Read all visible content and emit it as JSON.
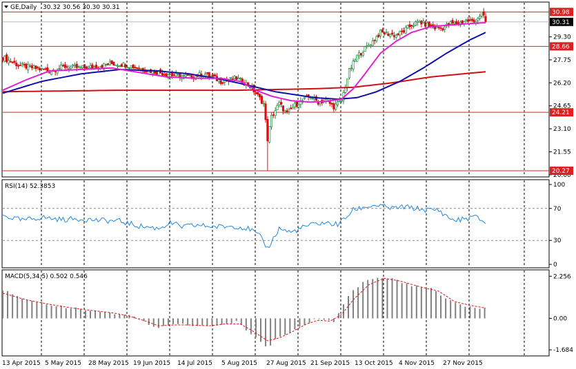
{
  "chart_data": [
    {
      "type": "candlestick",
      "header": {
        "symbol_label": "GE,Daily",
        "ohlc": "30.32 30.56 30.30 30.31"
      },
      "y_ticks": [
        "29.30",
        "27.75",
        "26.20",
        "24.65",
        "23.10",
        "21.55",
        "20.00"
      ],
      "price_levels": [
        {
          "label": "30.98",
          "value": 30.98,
          "style": "red-line"
        },
        {
          "label": "30.31",
          "value": 30.31,
          "style": "current"
        },
        {
          "label": "28.66",
          "value": 28.66,
          "style": "red-line"
        },
        {
          "label": "24.21",
          "value": 24.21,
          "style": "red-line"
        },
        {
          "label": "20.27",
          "value": 20.27,
          "style": "red-line"
        }
      ],
      "ylim": [
        19.9,
        31.6
      ],
      "x_labels": [
        "13 Apr 2015",
        "5 May 2015",
        "28 May 2015",
        "19 Jun 2015",
        "14 Jul 2015",
        "5 Aug 2015",
        "27 Aug 2015",
        "21 Sep 2015",
        "13 Oct 2015",
        "4 Nov 2015",
        "27 Nov 2015"
      ],
      "close_path": [
        [
          0,
          27.9
        ],
        [
          8,
          27.4
        ],
        [
          16,
          27.2
        ],
        [
          24,
          27.0
        ],
        [
          32,
          27.3
        ],
        [
          40,
          27.2
        ],
        [
          48,
          27.3
        ],
        [
          56,
          27.5
        ],
        [
          64,
          27.4
        ],
        [
          72,
          27.1
        ],
        [
          80,
          26.9
        ],
        [
          88,
          26.7
        ],
        [
          96,
          26.6
        ],
        [
          104,
          26.8
        ],
        [
          112,
          26.3
        ],
        [
          120,
          26.5
        ],
        [
          127,
          26.0
        ],
        [
          134,
          24.8
        ],
        [
          136,
          22.4
        ],
        [
          138,
          23.9
        ],
        [
          142,
          24.8
        ],
        [
          146,
          24.1
        ],
        [
          150,
          24.7
        ],
        [
          154,
          25.0
        ],
        [
          158,
          25.3
        ],
        [
          162,
          24.9
        ],
        [
          166,
          25.0
        ],
        [
          170,
          24.6
        ],
        [
          174,
          25.0
        ],
        [
          178,
          27.0
        ],
        [
          182,
          28.0
        ],
        [
          186,
          28.5
        ],
        [
          190,
          29.0
        ],
        [
          194,
          29.6
        ],
        [
          198,
          29.5
        ],
        [
          202,
          29.4
        ],
        [
          206,
          29.7
        ],
        [
          210,
          30.1
        ],
        [
          214,
          30.3
        ],
        [
          218,
          30.1
        ],
        [
          222,
          29.9
        ],
        [
          226,
          29.9
        ],
        [
          230,
          30.2
        ],
        [
          234,
          30.2
        ],
        [
          238,
          30.4
        ],
        [
          242,
          30.3
        ],
        [
          246,
          30.9
        ],
        [
          248,
          30.31
        ]
      ],
      "ma_fast": [
        [
          0,
          25.7
        ],
        [
          12,
          26.4
        ],
        [
          24,
          27.0
        ],
        [
          40,
          27.1
        ],
        [
          56,
          27.2
        ],
        [
          70,
          26.9
        ],
        [
          84,
          26.6
        ],
        [
          100,
          26.5
        ],
        [
          112,
          26.5
        ],
        [
          122,
          26.3
        ],
        [
          130,
          25.7
        ],
        [
          138,
          25.3
        ],
        [
          148,
          25.0
        ],
        [
          158,
          24.9
        ],
        [
          166,
          24.95
        ],
        [
          174,
          25.1
        ],
        [
          180,
          25.8
        ],
        [
          186,
          26.8
        ],
        [
          194,
          28.2
        ],
        [
          202,
          29.0
        ],
        [
          210,
          29.6
        ],
        [
          220,
          30.0
        ],
        [
          230,
          30.1
        ],
        [
          240,
          30.2
        ],
        [
          248,
          30.25
        ]
      ],
      "ma_mid": [
        [
          0,
          25.5
        ],
        [
          20,
          26.3
        ],
        [
          40,
          26.8
        ],
        [
          60,
          27.1
        ],
        [
          80,
          27.0
        ],
        [
          96,
          26.8
        ],
        [
          110,
          26.5
        ],
        [
          124,
          26.1
        ],
        [
          140,
          25.6
        ],
        [
          160,
          25.2
        ],
        [
          172,
          25.1
        ],
        [
          182,
          25.2
        ],
        [
          192,
          25.6
        ],
        [
          204,
          26.3
        ],
        [
          216,
          27.2
        ],
        [
          228,
          28.2
        ],
        [
          240,
          29.1
        ],
        [
          248,
          29.6
        ]
      ],
      "ma_slow": [
        [
          0,
          25.6
        ],
        [
          60,
          25.7
        ],
        [
          120,
          25.7
        ],
        [
          160,
          25.8
        ],
        [
          180,
          25.9
        ],
        [
          200,
          26.2
        ],
        [
          220,
          26.6
        ],
        [
          248,
          26.95
        ]
      ]
    },
    {
      "type": "line",
      "label": "RSI(14) 52.3853",
      "y_ticks": [
        "100",
        "70",
        "30",
        "0"
      ],
      "levels": [
        70,
        30
      ],
      "ylim": [
        0,
        100
      ],
      "values": [
        [
          0,
          61
        ],
        [
          10,
          55
        ],
        [
          20,
          59
        ],
        [
          30,
          56
        ],
        [
          40,
          57
        ],
        [
          50,
          55
        ],
        [
          60,
          54
        ],
        [
          70,
          48
        ],
        [
          80,
          45
        ],
        [
          86,
          52
        ],
        [
          92,
          47
        ],
        [
          100,
          49
        ],
        [
          110,
          47
        ],
        [
          120,
          48
        ],
        [
          127,
          44
        ],
        [
          132,
          35
        ],
        [
          136,
          20
        ],
        [
          142,
          45
        ],
        [
          148,
          40
        ],
        [
          156,
          48
        ],
        [
          164,
          52
        ],
        [
          172,
          50
        ],
        [
          176,
          58
        ],
        [
          180,
          68
        ],
        [
          186,
          72
        ],
        [
          192,
          74
        ],
        [
          196,
          72
        ],
        [
          200,
          70
        ],
        [
          206,
          72
        ],
        [
          212,
          70
        ],
        [
          218,
          68
        ],
        [
          224,
          68
        ],
        [
          228,
          60
        ],
        [
          232,
          55
        ],
        [
          238,
          57
        ],
        [
          242,
          60
        ],
        [
          246,
          55
        ],
        [
          248,
          52.4
        ]
      ]
    },
    {
      "type": "bar",
      "label": "MACD(5,34,5) 0.502 0.546",
      "y_ticks": [
        "2.256",
        "0.00",
        "-1.684"
      ],
      "ylim": [
        -1.9,
        2.45
      ],
      "values": [
        [
          0,
          1.55
        ],
        [
          12,
          0.95
        ],
        [
          24,
          0.75
        ],
        [
          36,
          0.55
        ],
        [
          46,
          0.42
        ],
        [
          56,
          0.3
        ],
        [
          64,
          0.15
        ],
        [
          72,
          -0.05
        ],
        [
          78,
          -0.55
        ],
        [
          86,
          -0.3
        ],
        [
          94,
          -0.35
        ],
        [
          104,
          -0.4
        ],
        [
          112,
          -0.35
        ],
        [
          120,
          -0.15
        ],
        [
          126,
          -0.7
        ],
        [
          134,
          -1.35
        ],
        [
          136,
          -1.6
        ],
        [
          140,
          -1.1
        ],
        [
          146,
          -0.8
        ],
        [
          152,
          -0.5
        ],
        [
          160,
          -0.05
        ],
        [
          166,
          -0.1
        ],
        [
          170,
          -0.2
        ],
        [
          174,
          0.5
        ],
        [
          178,
          1.3
        ],
        [
          186,
          2.05
        ],
        [
          194,
          2.2
        ],
        [
          200,
          2.1
        ],
        [
          210,
          1.75
        ],
        [
          220,
          1.6
        ],
        [
          228,
          1.0
        ],
        [
          236,
          0.7
        ],
        [
          244,
          0.6
        ],
        [
          248,
          0.5
        ]
      ],
      "signal": [
        [
          0,
          1.35
        ],
        [
          12,
          1.0
        ],
        [
          24,
          0.75
        ],
        [
          36,
          0.55
        ],
        [
          46,
          0.42
        ],
        [
          56,
          0.3
        ],
        [
          64,
          0.15
        ],
        [
          72,
          -0.1
        ],
        [
          80,
          -0.4
        ],
        [
          88,
          -0.35
        ],
        [
          96,
          -0.35
        ],
        [
          106,
          -0.4
        ],
        [
          114,
          -0.3
        ],
        [
          122,
          -0.3
        ],
        [
          128,
          -0.65
        ],
        [
          136,
          -1.2
        ],
        [
          142,
          -1.05
        ],
        [
          148,
          -0.75
        ],
        [
          156,
          -0.3
        ],
        [
          162,
          -0.1
        ],
        [
          168,
          -0.15
        ],
        [
          174,
          0.2
        ],
        [
          180,
          1.0
        ],
        [
          188,
          1.8
        ],
        [
          196,
          2.15
        ],
        [
          204,
          2.0
        ],
        [
          214,
          1.7
        ],
        [
          224,
          1.45
        ],
        [
          232,
          0.9
        ],
        [
          240,
          0.7
        ],
        [
          248,
          0.55
        ]
      ]
    }
  ],
  "colors": {
    "candle_up": "#1a8a3a",
    "candle_down": "#d41010",
    "ma_fast": "#e020d0",
    "ma_mid": "#1010a8",
    "ma_slow": "#d01010",
    "level_line": "#e02020",
    "rsi": "#2288dd",
    "macd_bar": "#808080",
    "signal": "#e01010"
  }
}
